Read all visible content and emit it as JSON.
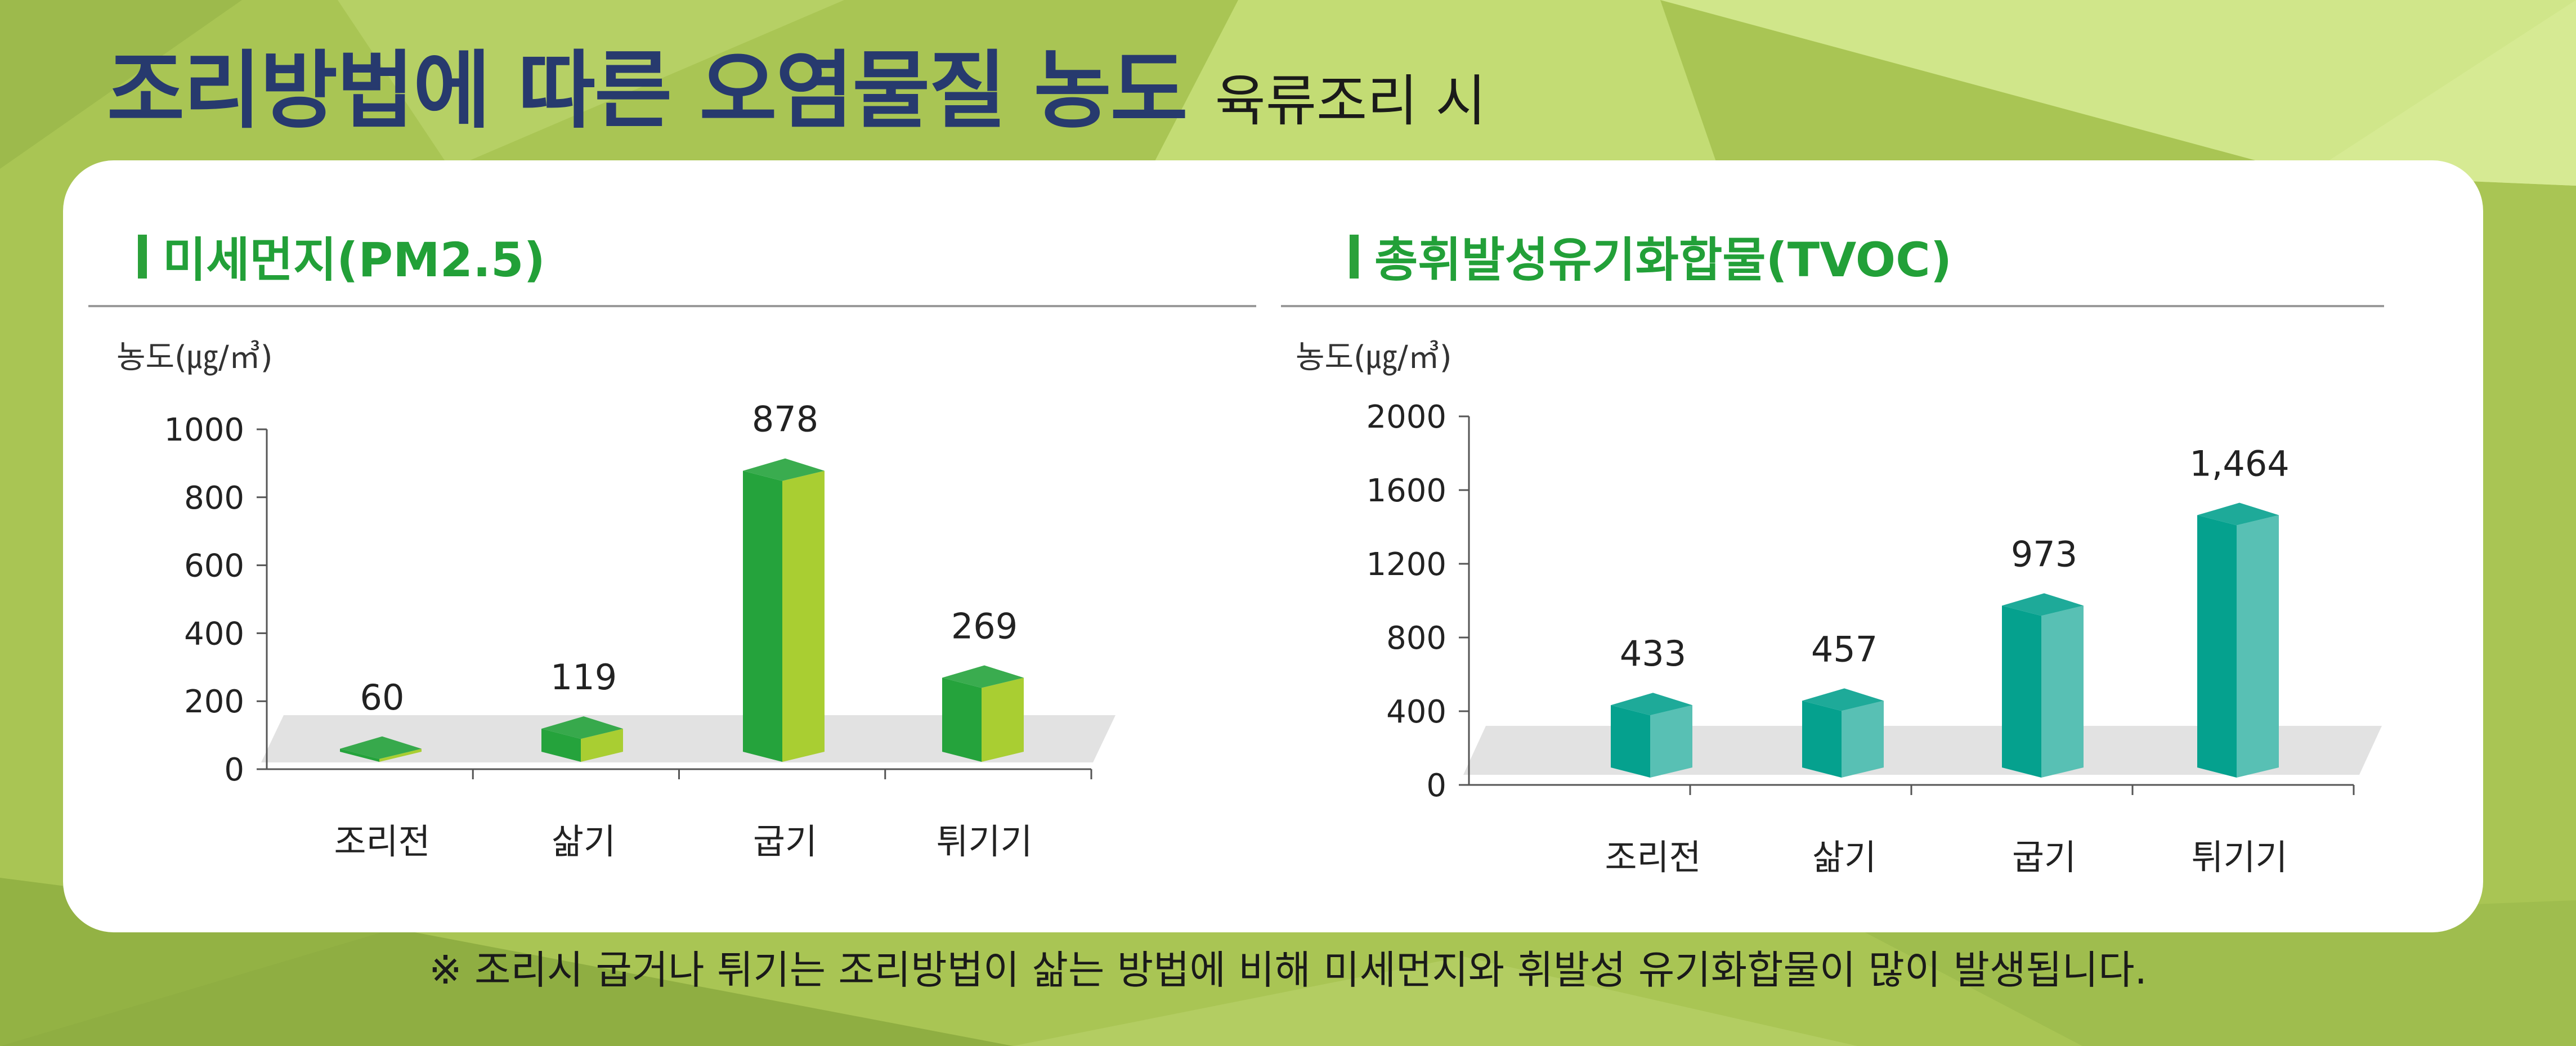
{
  "page": {
    "title": "조리방법에 따른 오염물질 농도",
    "subtitle": "육류조리 시",
    "footnote": "※ 조리시 굽거나 튀기는 조리방법이 삶는 방법에 비해 미세먼지와 휘발성 유기화합물이 많이 발생됩니다."
  },
  "colors": {
    "title": "#273a6e",
    "heading": "#22a038",
    "pm_bar_front": "#25a33c",
    "pm_bar_side": "#a9ce32",
    "tvoc_bar_front": "#05a18e",
    "tvoc_bar_side": "#58c0b4",
    "floor": "#e2e2e2"
  },
  "chart_data": [
    {
      "type": "bar",
      "title": "미세먼지(PM2.5)",
      "ylabel": "농도(㎍/㎥)",
      "categories": [
        "조리전",
        "삶기",
        "굽기",
        "튀기기"
      ],
      "values": [
        60,
        119,
        878,
        269
      ],
      "value_labels": [
        "60",
        "119",
        "878",
        "269"
      ],
      "ylim": [
        0,
        1000
      ],
      "yticks": [
        0,
        200,
        400,
        600,
        800,
        1000
      ],
      "ytick_labels": [
        "0",
        "200",
        "400",
        "600",
        "800",
        "1000"
      ],
      "grid": false,
      "style": "3d"
    },
    {
      "type": "bar",
      "title": "총휘발성유기화합물(TVOC)",
      "ylabel": "농도(㎍/㎥)",
      "categories": [
        "조리전",
        "삶기",
        "굽기",
        "튀기기"
      ],
      "values": [
        433,
        457,
        973,
        1464
      ],
      "value_labels": [
        "433",
        "457",
        "973",
        "1,464"
      ],
      "ylim": [
        0,
        2000
      ],
      "yticks": [
        0,
        400,
        800,
        1200,
        1600,
        2000
      ],
      "ytick_labels": [
        "0",
        "400",
        "800",
        "1200",
        "1600",
        "2000"
      ],
      "grid": false,
      "style": "3d"
    }
  ]
}
